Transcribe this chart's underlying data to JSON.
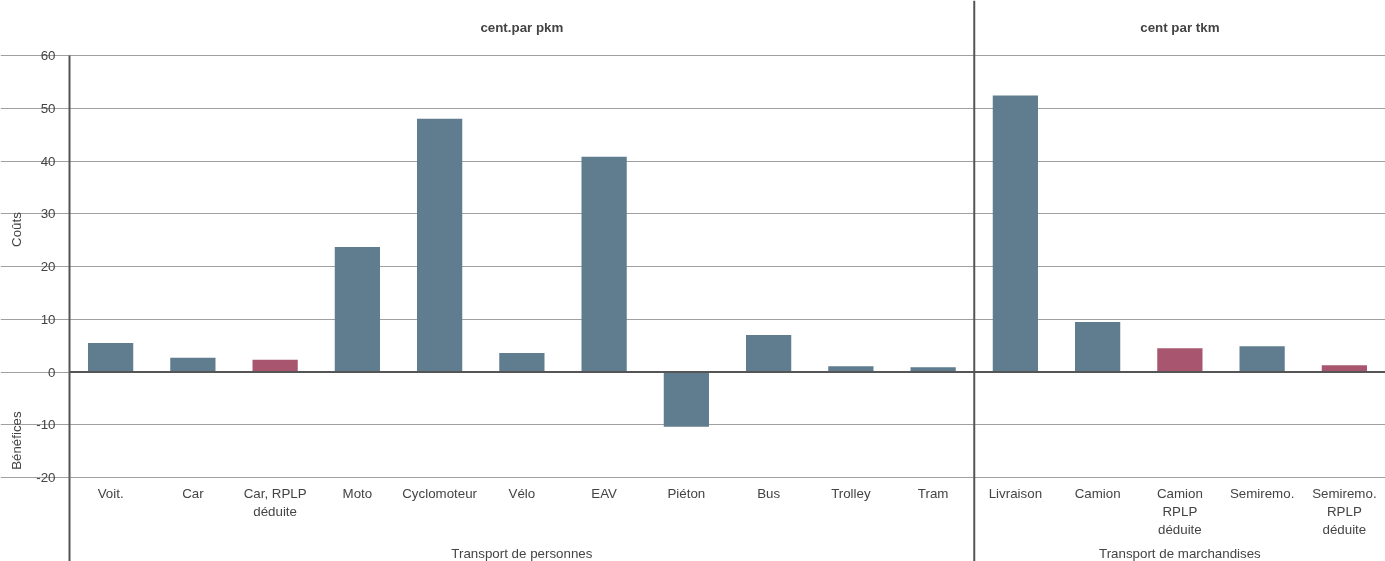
{
  "chart_data": {
    "type": "bar",
    "categories": [
      "Voit.",
      "Car",
      "Car, RPLP\ndéduite",
      "Moto",
      "Cyclomoteur",
      "Vélo",
      "EAV",
      "Piéton",
      "Bus",
      "Trolley",
      "Tram",
      "Livraison",
      "Camion",
      "Camion\nRPLP\ndéduite",
      "Semiremo.",
      "Semiremo.\nRPLP\ndéduite"
    ],
    "values": [
      5.5,
      2.7,
      2.3,
      23.7,
      48,
      3.6,
      40.8,
      -10.4,
      7.0,
      1.1,
      0.9,
      52.4,
      9.5,
      4.5,
      4.9,
      1.3
    ],
    "colors": [
      "#5f7d8e",
      "#5f7d8e",
      "#a8566f",
      "#5f7d8e",
      "#5f7d8e",
      "#5f7d8e",
      "#5f7d8e",
      "#5f7d8e",
      "#5f7d8e",
      "#5f7d8e",
      "#5f7d8e",
      "#5f7d8e",
      "#5f7d8e",
      "#a8566f",
      "#5f7d8e",
      "#a8566f"
    ],
    "ylabel": "Coûts",
    "annotations": [
      "cent.par pkm",
      "cent par tkm",
      "Transport de personnes",
      "Transport de marchandises",
      "Bénéfices"
    ],
    "ylim": [
      -20,
      60
    ],
    "yticks": [
      -20,
      -10,
      0,
      10,
      20,
      30,
      40,
      50,
      60
    ],
    "grid": "y"
  }
}
